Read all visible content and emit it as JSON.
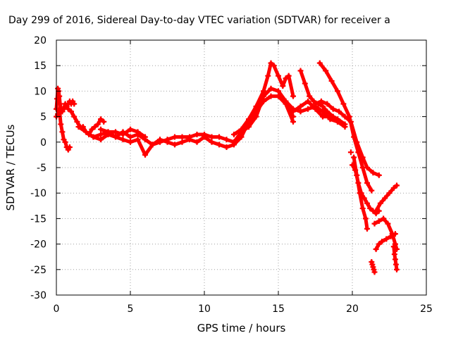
{
  "chart_data": {
    "type": "scatter",
    "title": "Day 299 of 2016, Sidereal Day-to-day VTEC variation (SDTVAR) for receiver a",
    "xlabel": "GPS time / hours",
    "ylabel": "SDTVAR / TECUs",
    "xlim": [
      0,
      25
    ],
    "ylim": [
      -30,
      20
    ],
    "xticks": [
      0,
      5,
      10,
      15,
      20,
      25
    ],
    "yticks": [
      -30,
      -25,
      -20,
      -15,
      -10,
      -5,
      0,
      5,
      10,
      15,
      20
    ],
    "grid": true,
    "marker": "+",
    "color": "#ff0000",
    "series": [
      {
        "x": [
          0,
          0.05,
          0.1,
          0.15,
          0.2,
          0.25,
          0.3,
          0.4,
          0.5,
          0.6,
          0.7,
          0.8,
          0.9,
          1.0,
          1.1,
          1.2
        ],
        "y": [
          6.5,
          8.5,
          10.5,
          10,
          9,
          7.5,
          6.5,
          6,
          6.5,
          7.5,
          7,
          7.5,
          8,
          7.5,
          8,
          7.5
        ]
      },
      {
        "x": [
          0,
          0.1,
          0.2,
          0.3,
          0.4,
          0.5,
          0.6,
          0.7,
          0.8,
          0.9
        ],
        "y": [
          5,
          5.5,
          6.5,
          3.5,
          2,
          0.5,
          0,
          -1,
          -1.5,
          -1
        ]
      },
      {
        "x": [
          0.4,
          0.6,
          0.8,
          1.0,
          1.2,
          1.4,
          1.6,
          1.8,
          2.0,
          2.2,
          2.4,
          2.6,
          2.8,
          3.0,
          3.2
        ],
        "y": [
          6,
          7,
          6.5,
          6,
          5,
          4,
          3,
          3,
          2,
          1.5,
          2.5,
          3,
          3.5,
          4.5,
          4
        ]
      },
      {
        "x": [
          1.5,
          2.0,
          2.5,
          3.0,
          3.5,
          4.0,
          4.5,
          5.0,
          5.5,
          6.0,
          6.5,
          7.0,
          7.5,
          8.0,
          8.5,
          9.0,
          9.5,
          10.0,
          10.5,
          11.0,
          11.5,
          12.0,
          12.5,
          13.0,
          13.5,
          14.0,
          14.5,
          15.0,
          15.5,
          16.0
        ],
        "y": [
          3,
          2,
          1,
          1.5,
          2,
          1,
          2,
          1,
          1.5,
          0.5,
          -0.5,
          0,
          0.5,
          1,
          1,
          1,
          1.5,
          1.5,
          1,
          1,
          0.5,
          0,
          2,
          3,
          5,
          9,
          10.5,
          10,
          8,
          5
        ]
      },
      {
        "x": [
          2.5,
          3.0,
          3.5,
          4.0,
          4.5,
          5.0,
          5.5,
          6.0,
          6.5,
          7.0,
          7.5,
          8.0,
          8.5,
          9.0,
          9.5,
          10.0,
          10.5,
          11.0,
          11.5,
          12.0,
          12.5,
          13.0,
          13.5,
          14.0,
          14.5,
          15.0,
          15.5,
          16.0
        ],
        "y": [
          1,
          0.5,
          1.5,
          1,
          0.5,
          0,
          0.5,
          -2.5,
          -0.5,
          0.5,
          0,
          -0.5,
          0,
          0.5,
          0,
          1,
          0,
          -0.5,
          -1,
          -0.5,
          1,
          4,
          6,
          8,
          9,
          9,
          7.5,
          4
        ]
      },
      {
        "x": [
          3.0,
          3.5,
          4.0,
          4.5,
          5.0,
          5.5,
          6.0
        ],
        "y": [
          2.5,
          2,
          2,
          1.5,
          2.5,
          2,
          1
        ]
      },
      {
        "x": [
          12.0,
          12.5,
          13.0,
          13.5,
          14.0,
          14.3,
          14.5,
          14.7,
          15.0,
          15.3,
          15.5,
          15.7,
          16.0
        ],
        "y": [
          1.5,
          2.5,
          4.5,
          7,
          10,
          13,
          15.5,
          15,
          13,
          11,
          12.5,
          13,
          9
        ]
      },
      {
        "x": [
          15.5,
          16.0,
          16.5,
          17.0,
          17.5,
          18.0,
          18.5,
          19.0,
          19.5
        ],
        "y": [
          8,
          6.5,
          6,
          6.5,
          7,
          6,
          4.5,
          4,
          3
        ]
      },
      {
        "x": [
          16.0,
          16.5,
          17.0,
          17.5,
          18.0,
          18.5,
          19.0
        ],
        "y": [
          6,
          7,
          8,
          6.5,
          5,
          5,
          4
        ]
      },
      {
        "x": [
          16.5,
          16.8,
          17.1,
          17.4,
          17.7,
          18.0,
          18.3,
          18.7,
          19.0,
          19.5
        ],
        "y": [
          14,
          11.5,
          9,
          8,
          7.5,
          7,
          6,
          5,
          4.5,
          3.5
        ]
      },
      {
        "x": [
          17.5,
          17.9,
          18.3,
          18.7,
          19.1,
          19.5,
          19.9,
          20.3,
          20.7,
          21.0,
          21.4,
          21.8
        ],
        "y": [
          7.5,
          8,
          7.5,
          6.5,
          6,
          5,
          4,
          0,
          -3,
          -5,
          -6,
          -6.5
        ]
      },
      {
        "x": [
          17.8,
          18.2,
          18.6,
          19.0,
          19.4,
          19.8,
          20.1,
          20.4,
          20.7,
          21.0,
          21.3
        ],
        "y": [
          15.5,
          14,
          12,
          10,
          7.5,
          5,
          1,
          -2,
          -5,
          -8,
          -9.5
        ]
      },
      {
        "x": [
          20.0,
          20.2,
          20.4,
          20.6,
          20.8,
          21.0,
          21.2,
          21.4,
          21.6,
          21.8
        ],
        "y": [
          -4.5,
          -5.5,
          -8,
          -10,
          -11,
          -12,
          -13,
          -13.5,
          -14,
          -13.5
        ]
      },
      {
        "x": [
          20.1,
          20.3,
          20.5,
          20.7,
          20.9,
          21.0
        ],
        "y": [
          -3,
          -6.5,
          -10,
          -13,
          -15,
          -17
        ]
      },
      {
        "x": [
          21.6,
          21.9,
          22.2,
          22.5,
          22.8,
          23.0
        ],
        "y": [
          -13.5,
          -12,
          -11,
          -10,
          -9,
          -8.5
        ]
      },
      {
        "x": [
          21.5,
          21.8,
          22.1,
          22.4,
          22.7,
          22.9,
          23.0
        ],
        "y": [
          -16,
          -15.5,
          -15,
          -16,
          -18,
          -20,
          -21
        ]
      },
      {
        "x": [
          21.6,
          21.8,
          22.0,
          22.3,
          22.6,
          22.9
        ],
        "y": [
          -21,
          -20,
          -19.5,
          -19,
          -18.5,
          -18
        ]
      },
      {
        "x": [
          21.3,
          21.35,
          21.4,
          21.45,
          21.5
        ],
        "y": [
          -23.5,
          -24,
          -24.5,
          -25,
          -25.5
        ]
      },
      {
        "x": [
          22.8,
          22.85,
          22.9,
          22.95,
          23.0
        ],
        "y": [
          -20.5,
          -22,
          -23,
          -24,
          -25
        ]
      },
      {
        "x": [
          19.9
        ],
        "y": [
          -2
        ]
      }
    ]
  }
}
